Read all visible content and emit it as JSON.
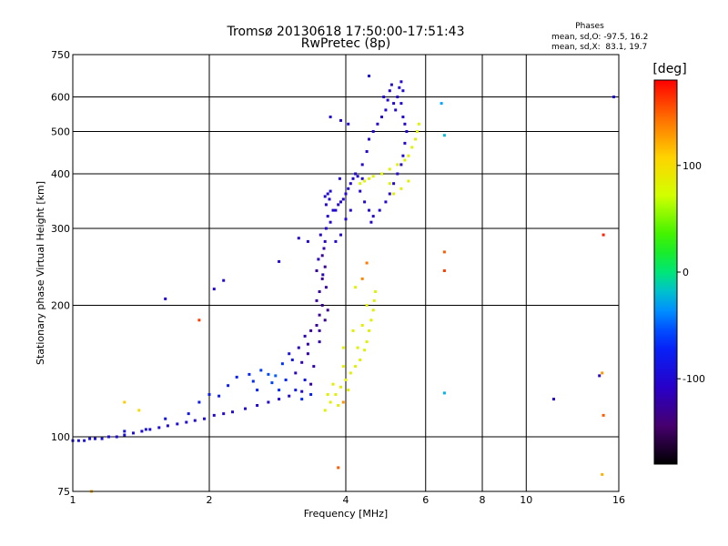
{
  "chart_data": {
    "type": "scatter",
    "title": "Tromsø 20130618 17:50:00-17:51:43",
    "subtitle": "RwPretec (8p)",
    "xlabel": "Frequency [MHz]",
    "ylabel": "Stationary phase Virtual Height [km]",
    "x_scale": "log",
    "y_scale": "log",
    "xlim": [
      1,
      16
    ],
    "ylim": [
      75,
      750
    ],
    "grid": true,
    "x_ticks": [
      1,
      2,
      4,
      6,
      8,
      10,
      16
    ],
    "x_tick_labels": [
      "1",
      "2",
      "4",
      "6",
      "8",
      "10",
      "16"
    ],
    "y_ticks": [
      75,
      100,
      200,
      300,
      400,
      500,
      600,
      750
    ],
    "y_tick_labels": [
      "75",
      "100",
      "200",
      "300",
      "400",
      "500",
      "600",
      "750"
    ],
    "stats": {
      "heading": "Phases",
      "line_O": "mean, sd,O: -97.5, 16.2",
      "line_X": "mean, sd,X:  83.1, 19.7"
    },
    "colorbar": {
      "label": "[deg]",
      "range": [
        -180,
        180
      ],
      "ticks": [
        100,
        0,
        -100
      ],
      "tick_labels": [
        "100",
        "0",
        "-100"
      ]
    },
    "series": [
      {
        "mode": "O",
        "points": [
          [
            1.0,
            98,
            -95
          ],
          [
            1.03,
            98,
            -92
          ],
          [
            1.06,
            98,
            -90
          ],
          [
            1.09,
            99,
            -94
          ],
          [
            1.12,
            99,
            -96
          ],
          [
            1.16,
            99,
            -93
          ],
          [
            1.2,
            100,
            -95
          ],
          [
            1.25,
            100,
            -97
          ],
          [
            1.3,
            101,
            -95
          ],
          [
            1.36,
            102,
            -96
          ],
          [
            1.42,
            103,
            -98
          ],
          [
            1.48,
            104,
            -95
          ],
          [
            1.55,
            105,
            -97
          ],
          [
            1.62,
            106,
            -99
          ],
          [
            1.7,
            107,
            -96
          ],
          [
            1.78,
            108,
            -98
          ],
          [
            1.86,
            109,
            -100
          ],
          [
            1.95,
            110,
            -97
          ],
          [
            2.05,
            112,
            -99
          ],
          [
            2.15,
            113,
            -101
          ],
          [
            2.25,
            114,
            -98
          ],
          [
            2.4,
            116,
            -100
          ],
          [
            2.55,
            118,
            -102
          ],
          [
            2.7,
            120,
            -99
          ],
          [
            2.85,
            122,
            -101
          ],
          [
            3.0,
            124,
            -103
          ],
          [
            3.2,
            127,
            -100
          ],
          [
            1.3,
            103,
            -90
          ],
          [
            1.45,
            104,
            -88
          ],
          [
            1.6,
            110,
            -85
          ],
          [
            1.8,
            113,
            -84
          ],
          [
            1.9,
            120,
            -82
          ],
          [
            2.0,
            125,
            -78
          ],
          [
            2.1,
            124,
            -80
          ],
          [
            2.2,
            131,
            -75
          ],
          [
            2.3,
            137,
            -72
          ],
          [
            2.5,
            134,
            -65
          ],
          [
            2.6,
            142,
            -60
          ],
          [
            2.7,
            139,
            -55
          ],
          [
            2.8,
            138,
            -50
          ],
          [
            2.9,
            147,
            -62
          ],
          [
            2.55,
            128,
            -70
          ],
          [
            2.75,
            133,
            -58
          ],
          [
            2.45,
            139,
            -68
          ],
          [
            2.85,
            128,
            -64
          ],
          [
            2.95,
            135,
            -67
          ],
          [
            3.05,
            150,
            -85
          ],
          [
            3.0,
            155,
            -90
          ],
          [
            3.1,
            140,
            -112
          ],
          [
            3.2,
            148,
            -115
          ],
          [
            3.3,
            155,
            -118
          ],
          [
            3.35,
            132,
            -120
          ],
          [
            3.3,
            163,
            -118
          ],
          [
            3.15,
            160,
            -110
          ],
          [
            3.25,
            170,
            -115
          ],
          [
            3.4,
            145,
            -118
          ],
          [
            3.35,
            175,
            -125
          ],
          [
            3.45,
            180,
            -125
          ],
          [
            3.5,
            190,
            -128
          ],
          [
            3.55,
            200,
            -130
          ],
          [
            3.5,
            215,
            -128
          ],
          [
            3.55,
            230,
            -130
          ],
          [
            3.6,
            245,
            -127
          ],
          [
            3.55,
            260,
            -128
          ],
          [
            3.5,
            175,
            -125
          ],
          [
            3.6,
            185,
            -128
          ],
          [
            3.5,
            165,
            -120
          ],
          [
            3.45,
            205,
            -122
          ],
          [
            3.62,
            220,
            -124
          ],
          [
            3.58,
            270,
            -121
          ],
          [
            3.45,
            240,
            -126
          ],
          [
            3.65,
            195,
            -129
          ],
          [
            3.6,
            280,
            -110
          ],
          [
            3.62,
            300,
            -100
          ],
          [
            3.65,
            320,
            -98
          ],
          [
            3.62,
            340,
            -103
          ],
          [
            3.65,
            360,
            -99
          ],
          [
            3.7,
            310,
            -101
          ],
          [
            3.68,
            350,
            -97
          ],
          [
            3.75,
            330,
            -100
          ],
          [
            3.8,
            330,
            -102
          ],
          [
            3.85,
            340,
            -104
          ],
          [
            3.9,
            345,
            -101
          ],
          [
            3.95,
            350,
            -103
          ],
          [
            4.0,
            360,
            -100
          ],
          [
            4.05,
            370,
            -99
          ],
          [
            4.1,
            380,
            -102
          ],
          [
            4.15,
            390,
            -101
          ],
          [
            4.2,
            400,
            -103
          ],
          [
            3.7,
            365,
            -96
          ],
          [
            3.6,
            355,
            -98
          ],
          [
            4.25,
            395,
            -99
          ],
          [
            4.35,
            420,
            -101
          ],
          [
            4.45,
            450,
            -103
          ],
          [
            4.5,
            480,
            -100
          ],
          [
            4.6,
            500,
            -98
          ],
          [
            4.7,
            520,
            -102
          ],
          [
            4.8,
            540,
            -101
          ],
          [
            4.9,
            560,
            -99
          ],
          [
            4.95,
            590,
            -100
          ],
          [
            5.0,
            620,
            -103
          ],
          [
            5.05,
            640,
            -101
          ],
          [
            4.85,
            600,
            -98
          ],
          [
            5.1,
            580,
            -100
          ],
          [
            5.15,
            560,
            -99
          ],
          [
            5.2,
            600,
            -102
          ],
          [
            5.25,
            630,
            -100
          ],
          [
            5.3,
            650,
            -101
          ],
          [
            5.35,
            620,
            -98
          ],
          [
            5.3,
            580,
            -100
          ],
          [
            5.35,
            540,
            -99
          ],
          [
            5.4,
            520,
            -102
          ],
          [
            5.45,
            500,
            -101
          ],
          [
            5.4,
            470,
            -100
          ],
          [
            5.35,
            440,
            -99
          ],
          [
            5.3,
            420,
            -103
          ],
          [
            5.2,
            400,
            -100
          ],
          [
            5.1,
            380,
            -101
          ],
          [
            5.0,
            360,
            -102
          ],
          [
            4.9,
            345,
            -100
          ],
          [
            4.75,
            330,
            -99
          ],
          [
            4.6,
            320,
            -101
          ],
          [
            4.5,
            330,
            -100
          ],
          [
            4.4,
            345,
            -102
          ],
          [
            4.3,
            365,
            -99
          ],
          [
            3.9,
            290,
            -100
          ],
          [
            3.8,
            280,
            -102
          ],
          [
            4.0,
            315,
            -98
          ],
          [
            4.1,
            330,
            -101
          ],
          [
            4.05,
            520,
            -100
          ],
          [
            3.9,
            530,
            -102
          ],
          [
            4.5,
            670,
            -98
          ],
          [
            2.05,
            218,
            -100
          ],
          [
            2.15,
            228,
            -98
          ],
          [
            1.6,
            207,
            -100
          ],
          [
            2.85,
            252,
            -102
          ],
          [
            3.15,
            285,
            -101
          ],
          [
            3.3,
            280,
            -103
          ],
          [
            3.88,
            390,
            -98
          ],
          [
            3.7,
            540,
            -100
          ],
          [
            4.35,
            390,
            -102
          ],
          [
            4.55,
            310,
            -104
          ],
          [
            3.48,
            255,
            -111
          ],
          [
            3.56,
            235,
            -115
          ],
          [
            3.52,
            290,
            -105
          ],
          [
            3.35,
            125,
            -70
          ],
          [
            3.2,
            122,
            -65
          ],
          [
            3.1,
            128,
            -80
          ],
          [
            3.25,
            135,
            -85
          ],
          [
            6.5,
            580,
            -30
          ],
          [
            6.6,
            490,
            -20
          ],
          [
            6.6,
            126,
            -25
          ],
          [
            11.5,
            122,
            -105
          ],
          [
            14.5,
            138,
            -110
          ],
          [
            15.6,
            600,
            -95
          ]
        ]
      },
      {
        "mode": "X",
        "points": [
          [
            3.6,
            115,
            83
          ],
          [
            3.7,
            120,
            85
          ],
          [
            3.8,
            125,
            84
          ],
          [
            3.9,
            130,
            83
          ],
          [
            4.0,
            135,
            82
          ],
          [
            4.1,
            140,
            84
          ],
          [
            4.2,
            145,
            85
          ],
          [
            4.3,
            150,
            83
          ],
          [
            4.4,
            158,
            82
          ],
          [
            4.45,
            165,
            84
          ],
          [
            4.5,
            175,
            83
          ],
          [
            4.55,
            185,
            85
          ],
          [
            4.6,
            195,
            82
          ],
          [
            4.62,
            205,
            84
          ],
          [
            4.65,
            215,
            83
          ],
          [
            3.75,
            132,
            86
          ],
          [
            3.95,
            145,
            84
          ],
          [
            4.25,
            160,
            82
          ],
          [
            4.35,
            180,
            84
          ],
          [
            4.45,
            200,
            85
          ],
          [
            3.65,
            125,
            83
          ],
          [
            3.85,
            118,
            84
          ],
          [
            4.05,
            128,
            86
          ],
          [
            4.2,
            220,
            82
          ],
          [
            3.95,
            160,
            83
          ],
          [
            4.15,
            175,
            85
          ],
          [
            4.3,
            380,
            80
          ],
          [
            4.4,
            385,
            82
          ],
          [
            4.5,
            390,
            84
          ],
          [
            4.6,
            395,
            81
          ],
          [
            4.8,
            400,
            83
          ],
          [
            5.0,
            410,
            82
          ],
          [
            5.2,
            420,
            84
          ],
          [
            5.4,
            430,
            83
          ],
          [
            5.5,
            440,
            85
          ],
          [
            5.6,
            460,
            82
          ],
          [
            5.7,
            480,
            84
          ],
          [
            5.75,
            500,
            83
          ],
          [
            5.8,
            520,
            82
          ],
          [
            5.3,
            370,
            84
          ],
          [
            5.5,
            385,
            83
          ],
          [
            5.1,
            360,
            85
          ],
          [
            5.0,
            380,
            81
          ],
          [
            3.85,
            85,
            150
          ],
          [
            3.95,
            120,
            130
          ],
          [
            4.35,
            230,
            135
          ],
          [
            4.45,
            250,
            140
          ],
          [
            6.6,
            265,
            150
          ],
          [
            6.6,
            240,
            160
          ],
          [
            1.9,
            185,
            160
          ],
          [
            14.8,
            290,
            170
          ],
          [
            14.7,
            140,
            130
          ],
          [
            14.8,
            112,
            150
          ],
          [
            14.7,
            82,
            120
          ],
          [
            1.3,
            120,
            110
          ],
          [
            1.1,
            75,
            120
          ],
          [
            1.4,
            115,
            100
          ]
        ]
      }
    ]
  }
}
